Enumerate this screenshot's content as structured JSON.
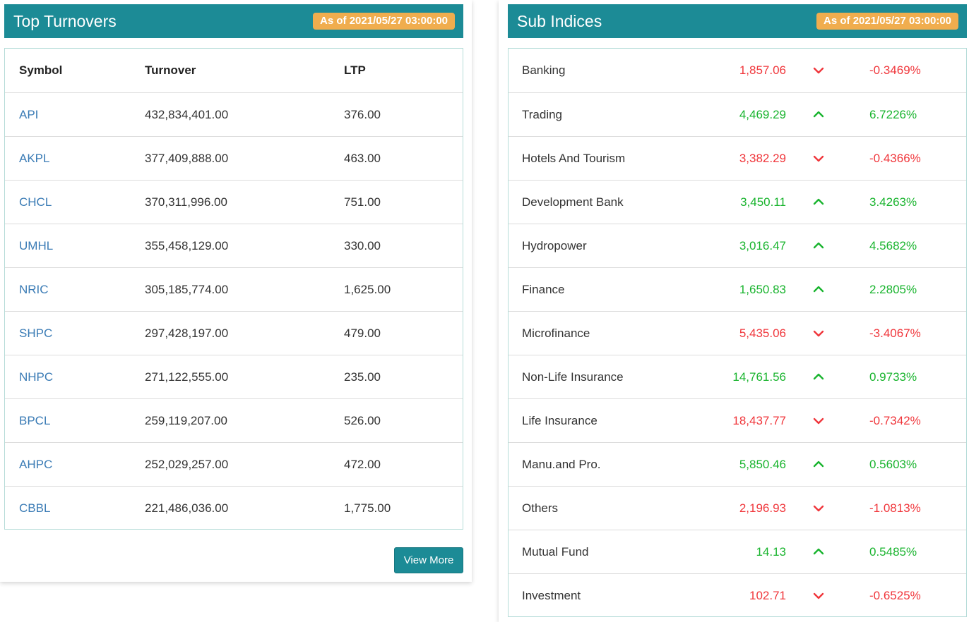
{
  "top_turnovers": {
    "title": "Top Turnovers",
    "as_of": "As of 2021/05/27 03:00:00",
    "columns": {
      "symbol": "Symbol",
      "turnover": "Turnover",
      "ltp": "LTP"
    },
    "rows": [
      {
        "symbol": "API",
        "turnover": "432,834,401.00",
        "ltp": "376.00"
      },
      {
        "symbol": "AKPL",
        "turnover": "377,409,888.00",
        "ltp": "463.00"
      },
      {
        "symbol": "CHCL",
        "turnover": "370,311,996.00",
        "ltp": "751.00"
      },
      {
        "symbol": "UMHL",
        "turnover": "355,458,129.00",
        "ltp": "330.00"
      },
      {
        "symbol": "NRIC",
        "turnover": "305,185,774.00",
        "ltp": "1,625.00"
      },
      {
        "symbol": "SHPC",
        "turnover": "297,428,197.00",
        "ltp": "479.00"
      },
      {
        "symbol": "NHPC",
        "turnover": "271,122,555.00",
        "ltp": "235.00"
      },
      {
        "symbol": "BPCL",
        "turnover": "259,119,207.00",
        "ltp": "526.00"
      },
      {
        "symbol": "AHPC",
        "turnover": "252,029,257.00",
        "ltp": "472.00"
      },
      {
        "symbol": "CBBL",
        "turnover": "221,486,036.00",
        "ltp": "1,775.00"
      }
    ],
    "view_more_label": "View More"
  },
  "sub_indices": {
    "title": "Sub Indices",
    "as_of": "As of 2021/05/27 03:00:00",
    "rows": [
      {
        "name": "Banking",
        "value": "1,857.06",
        "direction": "down",
        "change": "-0.3469%"
      },
      {
        "name": "Trading",
        "value": "4,469.29",
        "direction": "up",
        "change": "6.7226%"
      },
      {
        "name": "Hotels And Tourism",
        "value": "3,382.29",
        "direction": "down",
        "change": "-0.4366%"
      },
      {
        "name": "Development Bank",
        "value": "3,450.11",
        "direction": "up",
        "change": "3.4263%"
      },
      {
        "name": "Hydropower",
        "value": "3,016.47",
        "direction": "up",
        "change": "4.5682%"
      },
      {
        "name": "Finance",
        "value": "1,650.83",
        "direction": "up",
        "change": "2.2805%"
      },
      {
        "name": "Microfinance",
        "value": "5,435.06",
        "direction": "down",
        "change": "-3.4067%"
      },
      {
        "name": "Non-Life Insurance",
        "value": "14,761.56",
        "direction": "up",
        "change": "0.9733%"
      },
      {
        "name": "Life Insurance",
        "value": "18,437.77",
        "direction": "down",
        "change": "-0.7342%"
      },
      {
        "name": "Manu.and Pro.",
        "value": "5,850.46",
        "direction": "up",
        "change": "0.5603%"
      },
      {
        "name": "Others",
        "value": "2,196.93",
        "direction": "down",
        "change": "-1.0813%"
      },
      {
        "name": "Mutual Fund",
        "value": "14.13",
        "direction": "up",
        "change": "0.5485%"
      },
      {
        "name": "Investment",
        "value": "102.71",
        "direction": "down",
        "change": "-0.6525%"
      }
    ]
  },
  "colors": {
    "header_bg": "#1c8b96",
    "badge_bg": "#f0ad4e",
    "link": "#3a7bb5",
    "up": "#19b42e",
    "down": "#f0363b"
  }
}
